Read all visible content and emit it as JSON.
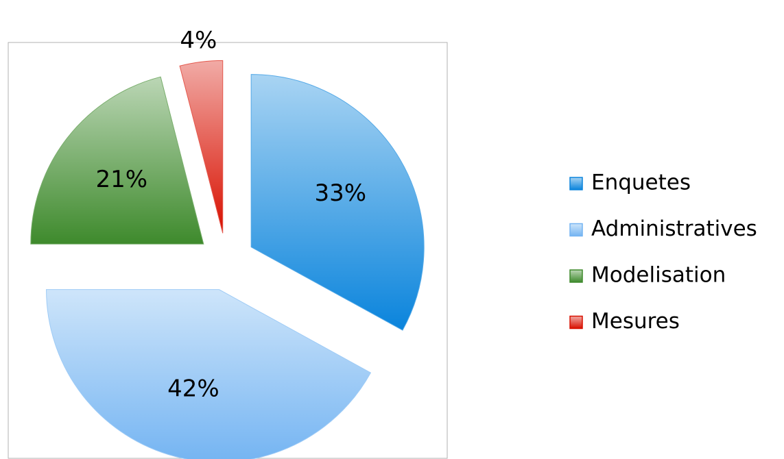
{
  "chart_data": {
    "type": "pie",
    "categories": [
      "Enquetes",
      "Administratives",
      "Modelisation",
      "Mesures"
    ],
    "values": [
      33,
      42,
      21,
      4
    ],
    "value_labels": [
      "33%",
      "42%",
      "21%",
      "4%"
    ],
    "colors": [
      "#0a84dc",
      "#74b4f2",
      "#3e8a2c",
      "#d81000"
    ],
    "legend": "right"
  }
}
